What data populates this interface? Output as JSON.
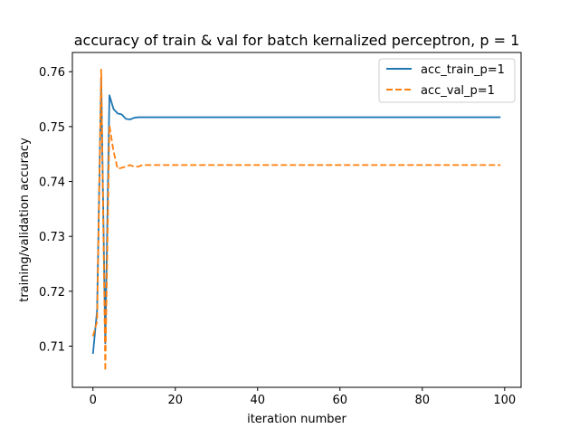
{
  "chart_data": {
    "type": "line",
    "title": "accuracy of train & val for batch kernalized perceptron, p = 1",
    "xlabel": "iteration number",
    "ylabel": "training/validation accuracy",
    "xlim": [
      -5,
      104
    ],
    "ylim": [
      0.7025,
      0.7635
    ],
    "xticks": [
      0,
      20,
      40,
      60,
      80,
      100
    ],
    "yticks": [
      0.71,
      0.72,
      0.73,
      0.74,
      0.75,
      0.76
    ],
    "xtick_labels": [
      "0",
      "20",
      "40",
      "60",
      "80",
      "100"
    ],
    "ytick_labels": [
      "0.71",
      "0.72",
      "0.73",
      "0.74",
      "0.75",
      "0.76"
    ],
    "grid": false,
    "legend": "top-right",
    "series": [
      {
        "name": "acc_train_p=1",
        "color": "#1f77b4",
        "style": "solid",
        "points": [
          [
            0,
            0.7086
          ],
          [
            1,
            0.7165
          ],
          [
            2,
            0.759
          ],
          [
            3,
            0.7105
          ],
          [
            4,
            0.7557
          ],
          [
            5,
            0.7532
          ],
          [
            6,
            0.7524
          ],
          [
            7,
            0.7522
          ],
          [
            8,
            0.7514
          ],
          [
            9,
            0.7513
          ],
          [
            10,
            0.7516
          ],
          [
            11,
            0.7517
          ],
          [
            99,
            0.7517
          ]
        ]
      },
      {
        "name": "acc_val_p=1",
        "color": "#ff7f0e",
        "style": "dashed",
        "points": [
          [
            0,
            0.7118
          ],
          [
            1,
            0.7145
          ],
          [
            2,
            0.7604
          ],
          [
            3,
            0.7055
          ],
          [
            4,
            0.7502
          ],
          [
            5,
            0.7455
          ],
          [
            6,
            0.7423
          ],
          [
            7,
            0.7425
          ],
          [
            8,
            0.7427
          ],
          [
            9,
            0.743
          ],
          [
            10,
            0.7427
          ],
          [
            11,
            0.7427
          ],
          [
            12,
            0.743
          ],
          [
            99,
            0.743
          ]
        ]
      }
    ]
  }
}
